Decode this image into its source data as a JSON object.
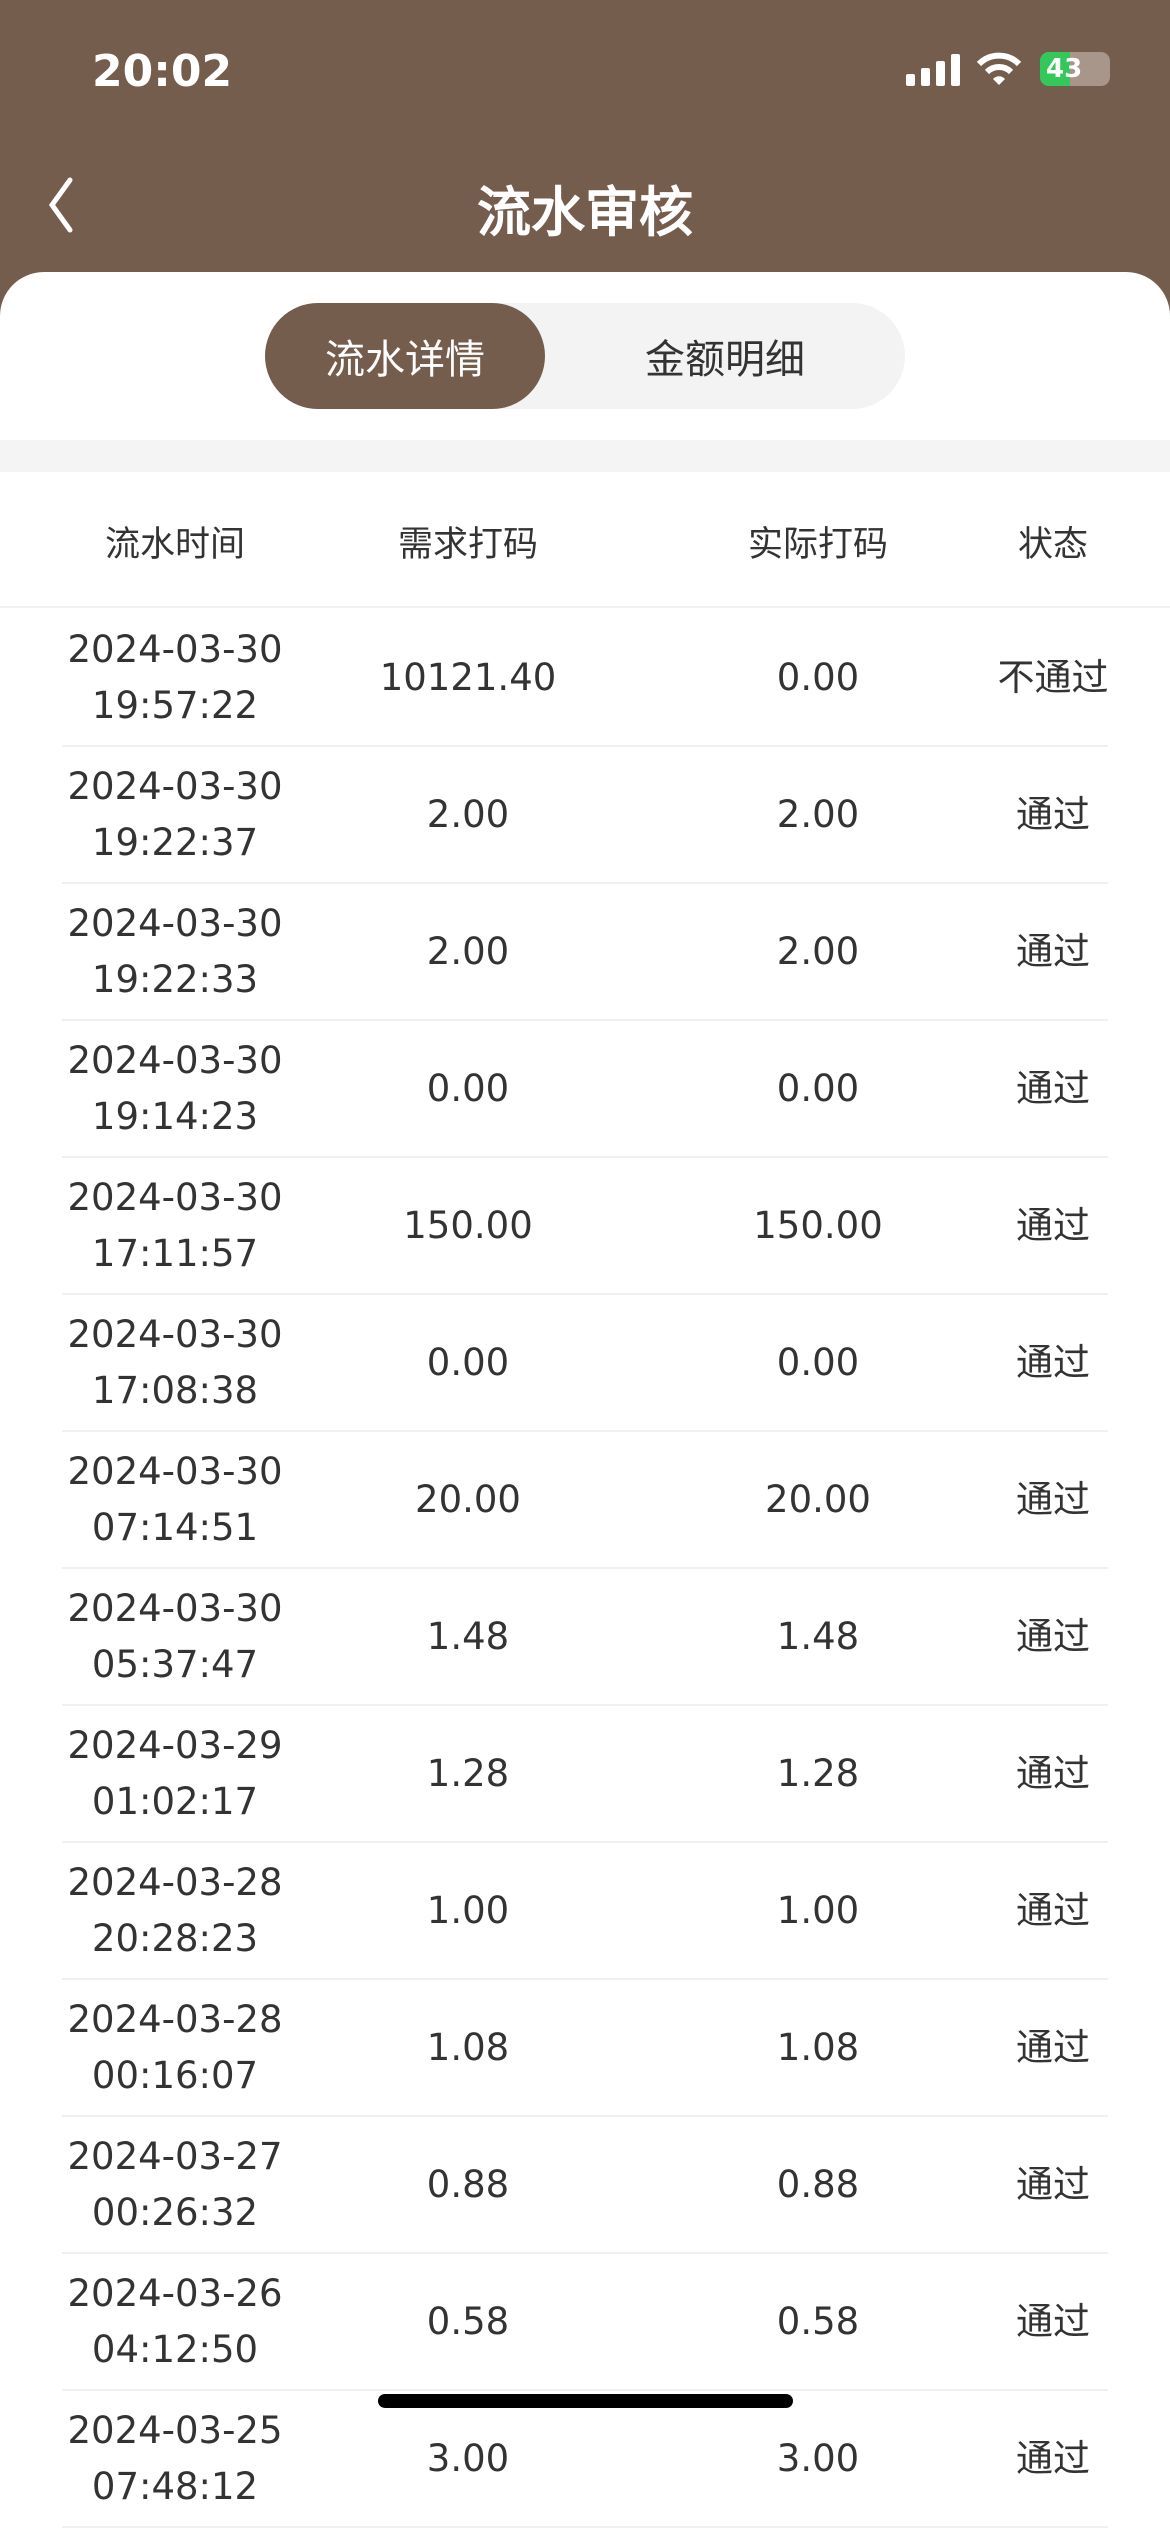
{
  "status_bar": {
    "time": "20:02",
    "battery": "43",
    "battery_level": 43
  },
  "header": {
    "title": "流水审核"
  },
  "tabs": [
    {
      "label": "流水详情",
      "active": true
    },
    {
      "label": "金额明细",
      "active": false
    }
  ],
  "table": {
    "columns": [
      "流水时间",
      "需求打码",
      "实际打码",
      "状态"
    ],
    "rows": [
      {
        "date": "2024-03-30",
        "time": "19:57:22",
        "required": "10121.40",
        "actual": "0.00",
        "status": "不通过"
      },
      {
        "date": "2024-03-30",
        "time": "19:22:37",
        "required": "2.00",
        "actual": "2.00",
        "status": "通过"
      },
      {
        "date": "2024-03-30",
        "time": "19:22:33",
        "required": "2.00",
        "actual": "2.00",
        "status": "通过"
      },
      {
        "date": "2024-03-30",
        "time": "19:14:23",
        "required": "0.00",
        "actual": "0.00",
        "status": "通过"
      },
      {
        "date": "2024-03-30",
        "time": "17:11:57",
        "required": "150.00",
        "actual": "150.00",
        "status": "通过"
      },
      {
        "date": "2024-03-30",
        "time": "17:08:38",
        "required": "0.00",
        "actual": "0.00",
        "status": "通过"
      },
      {
        "date": "2024-03-30",
        "time": "07:14:51",
        "required": "20.00",
        "actual": "20.00",
        "status": "通过"
      },
      {
        "date": "2024-03-30",
        "time": "05:37:47",
        "required": "1.48",
        "actual": "1.48",
        "status": "通过"
      },
      {
        "date": "2024-03-29",
        "time": "01:02:17",
        "required": "1.28",
        "actual": "1.28",
        "status": "通过"
      },
      {
        "date": "2024-03-28",
        "time": "20:28:23",
        "required": "1.00",
        "actual": "1.00",
        "status": "通过"
      },
      {
        "date": "2024-03-28",
        "time": "00:16:07",
        "required": "1.08",
        "actual": "1.08",
        "status": "通过"
      },
      {
        "date": "2024-03-27",
        "time": "00:26:32",
        "required": "0.88",
        "actual": "0.88",
        "status": "通过"
      },
      {
        "date": "2024-03-26",
        "time": "04:12:50",
        "required": "0.58",
        "actual": "0.58",
        "status": "通过"
      },
      {
        "date": "2024-03-25",
        "time": "07:48:12",
        "required": "3.00",
        "actual": "3.00",
        "status": "通过"
      }
    ]
  },
  "colors": {
    "brand": "#755d4d",
    "battery": "#34c759"
  }
}
